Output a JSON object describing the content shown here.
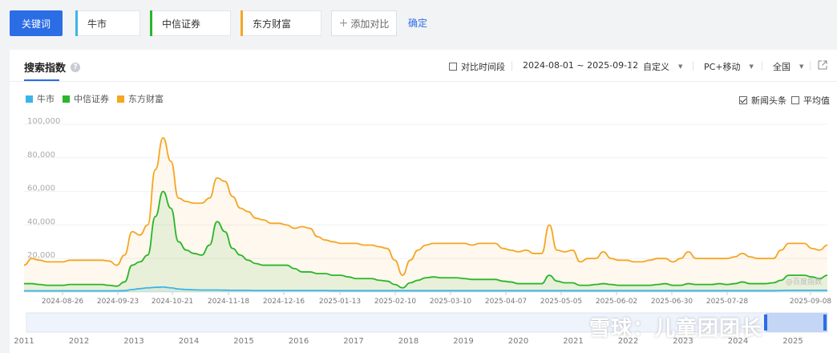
{
  "toolbar": {
    "keyword_button": "关键词",
    "keywords": [
      {
        "label": "牛市",
        "color": "#3ab5e8"
      },
      {
        "label": "中信证券",
        "color": "#2bb52b"
      },
      {
        "label": "东方财富",
        "color": "#f5a623"
      }
    ],
    "add_compare": "添加对比",
    "confirm": "确定"
  },
  "panel": {
    "title": "搜索指数",
    "compare_period": "对比时间段",
    "date_range": "2024-08-01 ~ 2025-09-12",
    "custom": "自定义",
    "device": "PC+移动",
    "region": "全国",
    "news_headline": "新闻头条",
    "average": "平均值",
    "watermark_small": "@百度指数"
  },
  "watermark": "雪球：儿童团团长",
  "chart_data": {
    "type": "line",
    "x_ticks": [
      "2024-08-26",
      "2024-09-23",
      "2024-10-21",
      "2024-11-18",
      "2024-12-16",
      "2025-01-13",
      "2025-02-10",
      "2025-03-10",
      "2025-04-07",
      "2025-05-05",
      "2025-06-02",
      "2025-06-30",
      "2025-07-28",
      "2025-09-08"
    ],
    "y_ticks": [
      "100,000",
      "80,000",
      "60,000",
      "40,000",
      "20,000"
    ],
    "ylim": [
      0,
      100000
    ],
    "overview_years": [
      "2011",
      "2012",
      "2013",
      "2014",
      "2015",
      "2016",
      "2017",
      "2018",
      "2019",
      "2020",
      "2021",
      "2022",
      "2023",
      "2024",
      "2025"
    ],
    "legend_placement": "top-left",
    "series": [
      {
        "name": "东方财富",
        "color": "#f5a623",
        "values": [
          16000,
          20000,
          19000,
          18000,
          18000,
          18000,
          19000,
          19000,
          19000,
          19000,
          19000,
          18500,
          16000,
          22000,
          36000,
          34000,
          40000,
          73000,
          92000,
          78000,
          56000,
          54000,
          53000,
          53000,
          56000,
          68000,
          66000,
          57000,
          50000,
          48000,
          44000,
          43000,
          41000,
          41000,
          40000,
          38000,
          39000,
          38000,
          33000,
          31000,
          30000,
          29000,
          29000,
          29000,
          28000,
          28000,
          27000,
          26000,
          19000,
          10000,
          19000,
          25000,
          28000,
          29000,
          29000,
          29000,
          29000,
          29000,
          28000,
          29000,
          29000,
          29000,
          26000,
          25000,
          24000,
          25000,
          23000,
          23000,
          40000,
          25000,
          24000,
          25000,
          18000,
          20000,
          20000,
          24000,
          20000,
          19000,
          19000,
          18000,
          18000,
          19000,
          20000,
          20000,
          18000,
          20000,
          24000,
          20000,
          20000,
          20000,
          20000,
          20000,
          21000,
          23000,
          21000,
          20000,
          20000,
          20000,
          25000,
          29000,
          29000,
          29000,
          26000,
          25000,
          28000
        ]
      },
      {
        "name": "中信证券",
        "color": "#2bb52b",
        "values": [
          5000,
          5000,
          4500,
          4000,
          4000,
          4000,
          4500,
          4500,
          4500,
          4500,
          4500,
          4000,
          3500,
          6000,
          16000,
          18000,
          22000,
          45000,
          60000,
          50000,
          30000,
          25000,
          23000,
          22000,
          28000,
          42000,
          36000,
          26000,
          22000,
          19000,
          17000,
          16000,
          16000,
          16000,
          16000,
          14000,
          12000,
          12000,
          11000,
          11000,
          10000,
          10000,
          9000,
          8000,
          8000,
          8000,
          7000,
          6500,
          4500,
          2500,
          5500,
          7000,
          8500,
          9000,
          8500,
          8500,
          8500,
          8000,
          7500,
          7500,
          7500,
          7500,
          6500,
          6000,
          5000,
          5000,
          5000,
          5000,
          10000,
          6500,
          5500,
          5500,
          4000,
          4000,
          4500,
          5000,
          4500,
          4000,
          4000,
          4000,
          4000,
          4000,
          4500,
          5000,
          4000,
          4000,
          5000,
          4500,
          4500,
          4500,
          5000,
          4500,
          5000,
          6000,
          5000,
          5000,
          5000,
          5500,
          7000,
          10000,
          10000,
          10000,
          9000,
          8000,
          10000
        ]
      },
      {
        "name": "牛市",
        "color": "#3ab5e8",
        "values": [
          700,
          700,
          700,
          700,
          700,
          700,
          700,
          700,
          700,
          700,
          700,
          700,
          700,
          800,
          1500,
          2000,
          2500,
          2800,
          3000,
          2500,
          1800,
          1500,
          1300,
          1200,
          1200,
          1200,
          1100,
          1000,
          1000,
          1000,
          900,
          900,
          900,
          900,
          900,
          900,
          900,
          900,
          900,
          900,
          800,
          800,
          800,
          800,
          800,
          800,
          800,
          800,
          800,
          800,
          800,
          800,
          800,
          800,
          800,
          800,
          800,
          800,
          800,
          800,
          800,
          800,
          800,
          800,
          800,
          800,
          800,
          800,
          800,
          800,
          800,
          800,
          800,
          800,
          800,
          800,
          800,
          800,
          800,
          800,
          800,
          800,
          800,
          800,
          800,
          800,
          800,
          800,
          800,
          800,
          800,
          800,
          800,
          800,
          800,
          800,
          800,
          800,
          900,
          1000,
          1000,
          1000,
          1000,
          1000,
          1000
        ]
      }
    ]
  }
}
